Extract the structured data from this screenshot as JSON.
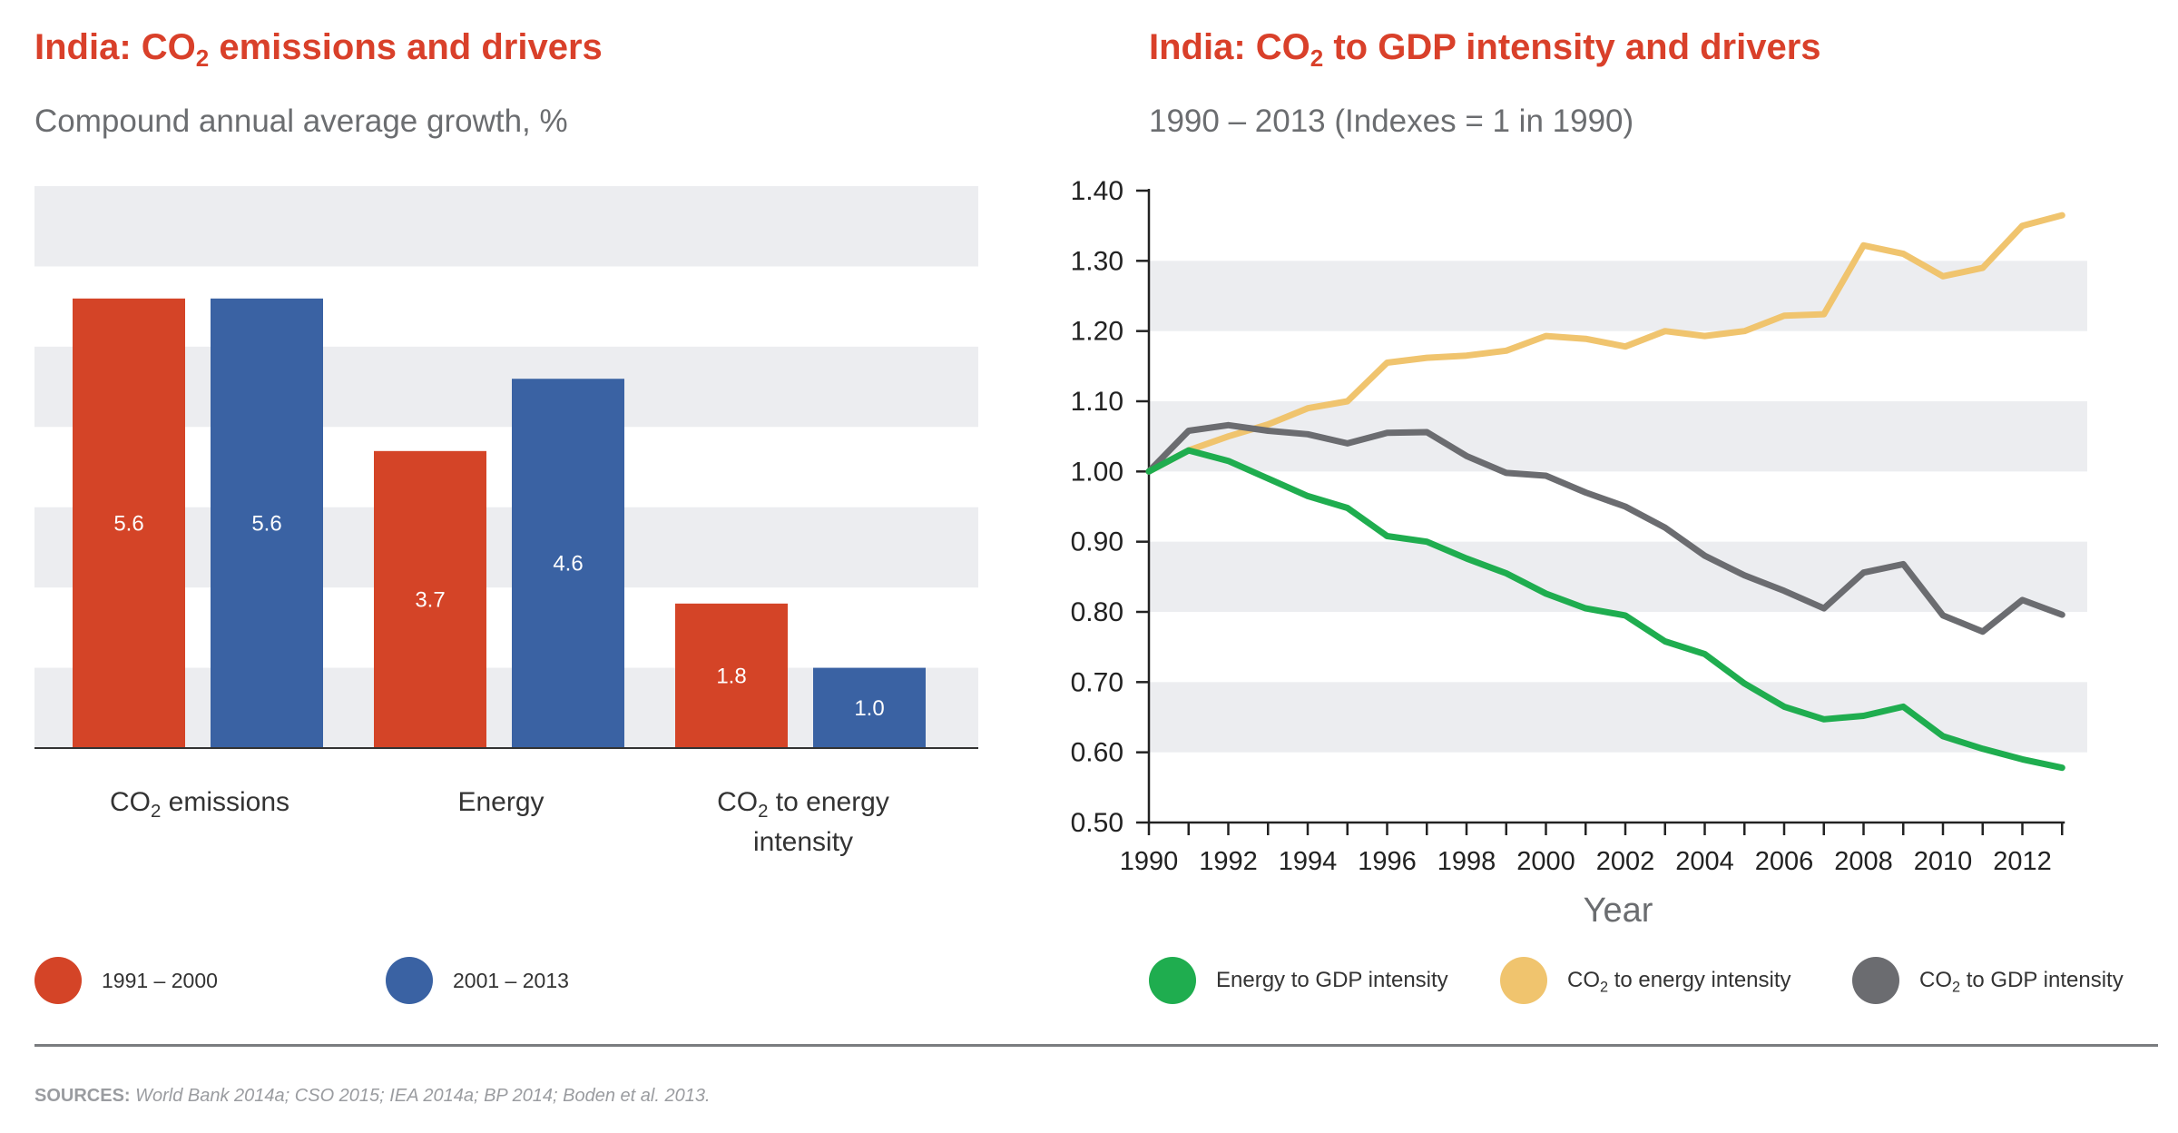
{
  "left_panel": {
    "title_pre": "India: CO",
    "title_sub": "2",
    "title_post": " emissions and drivers",
    "subtitle": "Compound annual average growth, %",
    "legend": [
      {
        "label": "1991 – 2000",
        "color": "#d44427"
      },
      {
        "label": "2001 – 2013",
        "color": "#3a62a3"
      }
    ]
  },
  "right_panel": {
    "title_pre": "India: CO",
    "title_sub": "2",
    "title_post": " to GDP intensity and drivers",
    "subtitle": "1990 – 2013 (Indexes = 1 in 1990)",
    "legend": [
      {
        "pre": "Energy to GDP intensity",
        "sub": "",
        "post": "",
        "color": "#1fad4f"
      },
      {
        "pre": "CO",
        "sub": "2",
        "post": " to energy intensity",
        "color": "#f0c46e"
      },
      {
        "pre": "CO",
        "sub": "2",
        "post": " to GDP intensity",
        "color": "#6b6c70"
      }
    ]
  },
  "sources": {
    "label": "SOURCES:",
    "text": " World Bank 2014a; CSO 2015; IEA 2014a; BP 2014; Boden et al. 2013."
  },
  "colors": {
    "accent_title": "#d9402a",
    "band": "#ecedf0",
    "series_1991_2000": "#d44427",
    "series_2001_2013": "#3a62a3"
  },
  "chart_data": [
    {
      "type": "bar",
      "categories": [
        {
          "pre": "CO",
          "sub": "2",
          "post": " emissions"
        },
        {
          "pre": "Energy",
          "sub": "",
          "post": ""
        },
        {
          "pre": "CO",
          "sub": "2",
          "post": " to energy intensity"
        }
      ],
      "series": [
        {
          "name": "1991 – 2000",
          "values": [
            5.6,
            3.7,
            1.8
          ],
          "labels": [
            "5.6",
            "3.7",
            "1.8"
          ],
          "color": "#d44427"
        },
        {
          "name": "2001 – 2013",
          "values": [
            5.6,
            4.6,
            1.0
          ],
          "labels": [
            "5.6",
            "4.6",
            "1.0"
          ],
          "color": "#3a62a3"
        }
      ],
      "ylim": [
        0,
        7
      ],
      "grid": "alternating bands",
      "legend": "bottom"
    },
    {
      "type": "line",
      "x": [
        1990,
        1991,
        1992,
        1993,
        1994,
        1995,
        1996,
        1997,
        1998,
        1999,
        2000,
        2001,
        2002,
        2003,
        2004,
        2005,
        2006,
        2007,
        2008,
        2009,
        2010,
        2011,
        2012,
        2013
      ],
      "series": [
        {
          "name": "Energy to GDP intensity",
          "color": "#1fad4f",
          "values": [
            1.0,
            1.03,
            1.015,
            0.99,
            0.965,
            0.948,
            0.908,
            0.9,
            0.876,
            0.855,
            0.826,
            0.805,
            0.795,
            0.758,
            0.74,
            0.698,
            0.665,
            0.647,
            0.652,
            0.665,
            0.623,
            0.605,
            0.59,
            0.578
          ]
        },
        {
          "name": "CO2 to energy intensity",
          "color": "#f0c46e",
          "values": [
            1.0,
            1.03,
            1.05,
            1.067,
            1.09,
            1.1,
            1.155,
            1.162,
            1.165,
            1.172,
            1.193,
            1.189,
            1.178,
            1.2,
            1.193,
            1.2,
            1.222,
            1.224,
            1.322,
            1.31,
            1.278,
            1.29,
            1.35,
            1.365
          ]
        },
        {
          "name": "CO2 to GDP intensity",
          "color": "#6b6c70",
          "values": [
            1.0,
            1.058,
            1.066,
            1.058,
            1.053,
            1.04,
            1.055,
            1.056,
            1.022,
            0.998,
            0.994,
            0.97,
            0.95,
            0.92,
            0.88,
            0.852,
            0.83,
            0.805,
            0.856,
            0.868,
            0.795,
            0.772,
            0.817,
            0.796
          ]
        }
      ],
      "xlabel": "Year",
      "ylabel": "",
      "xlim": [
        1990,
        2013
      ],
      "ylim": [
        0.5,
        1.4
      ],
      "yticks": [
        "0.50",
        "0.60",
        "0.70",
        "0.80",
        "0.90",
        "1.00",
        "1.10",
        "1.20",
        "1.30",
        "1.40"
      ],
      "xticks": [
        "1990",
        "1992",
        "1994",
        "1996",
        "1998",
        "2000",
        "2002",
        "2004",
        "2006",
        "2008",
        "2010",
        "2012"
      ],
      "grid": "alternating bands",
      "legend": "bottom"
    }
  ]
}
